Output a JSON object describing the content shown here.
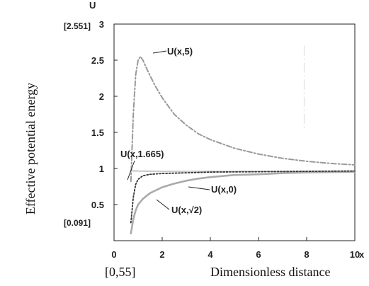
{
  "chart_data": {
    "type": "line",
    "xlim": [
      0,
      10
    ],
    "ylim": [
      0,
      3
    ],
    "x_ticks": [
      "0",
      "2",
      "4",
      "6",
      "8",
      "10"
    ],
    "y_ticks": [
      "0.5",
      "1",
      "1.5",
      "2",
      "2.5",
      "3"
    ],
    "grid": false,
    "y_axis_letter": "U",
    "x_axis_letter": "x",
    "y_max_bracket": "[2.551]",
    "y_min_bracket": "[0.091]",
    "x_range_bracket": "[0,55]",
    "ylabel": "Effective potential energy",
    "xlabel": "Dimensionless distance",
    "series": [
      {
        "name": "U(x,5)",
        "style": "dash-dot",
        "color": "#999999",
        "x": [
          0.7,
          0.8,
          0.9,
          1.0,
          1.1,
          1.2,
          1.4,
          1.7,
          2.0,
          2.5,
          3.0,
          3.5,
          4.0,
          5.0,
          6.0,
          7.0,
          8.0,
          9.0,
          10.0
        ],
        "y": [
          0.82,
          1.75,
          2.3,
          2.5,
          2.55,
          2.5,
          2.35,
          2.15,
          1.98,
          1.75,
          1.6,
          1.48,
          1.4,
          1.28,
          1.2,
          1.14,
          1.1,
          1.07,
          1.05
        ]
      },
      {
        "name": "U(x,1.665)",
        "style": "dotted",
        "color": "#333333",
        "x": [
          0.7,
          0.8,
          0.9,
          1.0,
          1.2,
          1.5,
          2.0,
          3.0,
          4.0,
          6.0,
          8.0,
          10.0
        ],
        "y": [
          0.25,
          0.6,
          0.78,
          0.85,
          0.9,
          0.92,
          0.93,
          0.94,
          0.95,
          0.955,
          0.96,
          0.965
        ]
      },
      {
        "name": "U(x,√2)",
        "style": "solid",
        "color": "#aaaaaa",
        "x": [
          0.7,
          0.8,
          0.9,
          1.0,
          1.2,
          1.5,
          2.0,
          2.5,
          3.0,
          3.5,
          4.0,
          5.0,
          6.0,
          7.0,
          8.0,
          9.0,
          10.0
        ],
        "y": [
          0.1,
          0.3,
          0.42,
          0.5,
          0.58,
          0.66,
          0.74,
          0.79,
          0.83,
          0.86,
          0.88,
          0.91,
          0.92,
          0.935,
          0.945,
          0.95,
          0.955
        ]
      },
      {
        "name": "U(x,0)",
        "style": "solid-light",
        "color": "#cccccc",
        "x": [
          0.7,
          1.0,
          2.0,
          4.0,
          6.0,
          8.0,
          10.0
        ],
        "y": [
          0.97,
          0.965,
          0.96,
          0.96,
          0.96,
          0.962,
          0.965
        ]
      }
    ],
    "annotations": [
      {
        "label": "U(x,5)"
      },
      {
        "label": "U(x,1.665)"
      },
      {
        "label": "U(x,0)"
      },
      {
        "label": "U(x,√2)"
      }
    ]
  }
}
